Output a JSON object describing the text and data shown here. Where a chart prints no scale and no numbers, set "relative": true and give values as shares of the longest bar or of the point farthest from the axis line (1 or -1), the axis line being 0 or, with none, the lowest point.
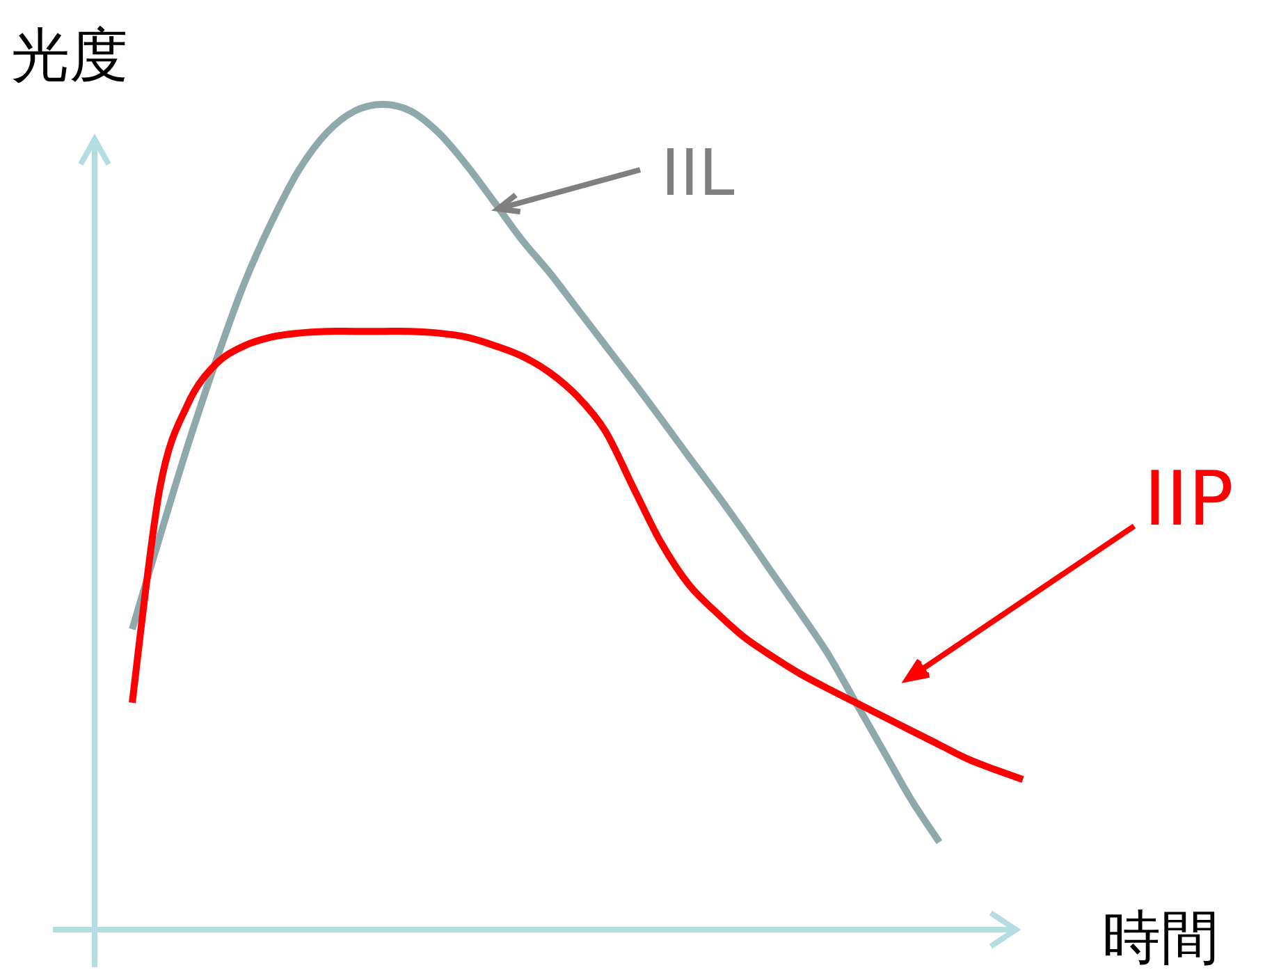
{
  "chart_data": {
    "type": "line",
    "relative": true,
    "xlabel": "時間",
    "ylabel": "光度",
    "categories": [
      null,
      null,
      null,
      null,
      null,
      null,
      null,
      null,
      null,
      null,
      null,
      null,
      null,
      null,
      null,
      null,
      null,
      null,
      null,
      null,
      null,
      null,
      null,
      null,
      null,
      null,
      null,
      null,
      null,
      null,
      null,
      null,
      null
    ],
    "series": [
      {
        "name": "IIL",
        "color": "#8fa8ab",
        "values": [
          0.364,
          0.477,
          0.587,
          0.688,
          0.781,
          0.857,
          0.921,
          0.966,
          0.992,
          1,
          0.992,
          0.966,
          0.927,
          0.882,
          0.836,
          0.796,
          0.752,
          0.708,
          0.664,
          0.619,
          0.573,
          0.528,
          0.481,
          0.432,
          0.384,
          0.334,
          0.275,
          0.216,
          0.157,
          0.106,
          null,
          null,
          null
        ]
      },
      {
        "name": "IIP",
        "color": "#ff0000",
        "values": [
          0.275,
          0.536,
          0.637,
          0.685,
          0.707,
          0.718,
          0.723,
          0.725,
          0.725,
          0.725,
          0.725,
          0.723,
          0.718,
          0.708,
          0.695,
          0.675,
          0.646,
          0.604,
          0.536,
          0.469,
          0.418,
          0.384,
          0.354,
          0.331,
          0.31,
          0.292,
          0.275,
          0.258,
          0.241,
          0.224,
          0.207,
          0.194,
          0.182
        ]
      }
    ]
  }
}
